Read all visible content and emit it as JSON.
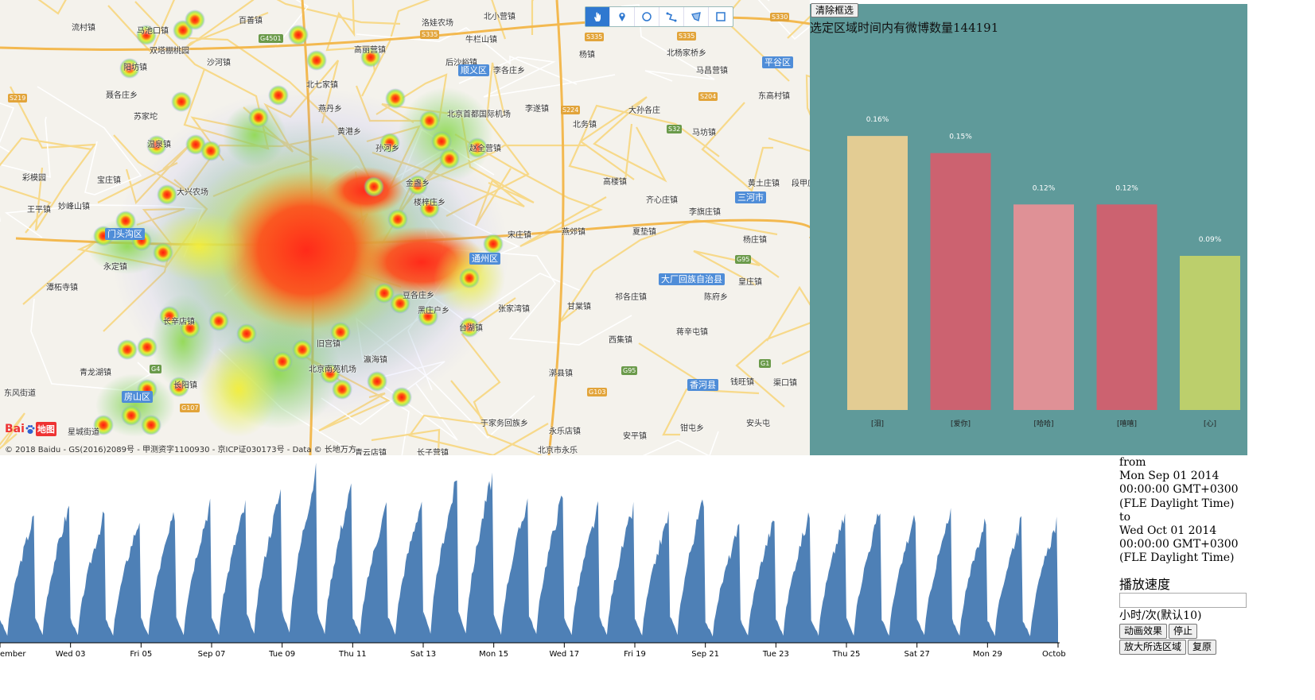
{
  "map": {
    "toolbar": [
      {
        "name": "hand-pan-icon",
        "active": true
      },
      {
        "name": "marker-icon",
        "active": false
      },
      {
        "name": "circle-draw-icon",
        "active": false
      },
      {
        "name": "polyline-draw-icon",
        "active": false
      },
      {
        "name": "polygon-draw-icon",
        "active": false
      },
      {
        "name": "rectangle-draw-icon",
        "active": false
      }
    ],
    "places": [
      [
        "流村镇",
        90,
        26
      ],
      [
        "马池口镇",
        172,
        30
      ],
      [
        "百善镇",
        300,
        17
      ],
      [
        "洛娃农场",
        530,
        20
      ],
      [
        "北小营镇",
        608,
        12
      ],
      [
        "双塔棚桃园",
        188,
        55
      ],
      [
        "沙河镇",
        260,
        70
      ],
      [
        "高丽营镇",
        445,
        54
      ],
      [
        "牛栏山镇",
        585,
        41
      ],
      [
        "杨镇",
        728,
        60
      ],
      [
        "北杨家桥乡",
        838,
        58
      ],
      [
        "阳坊镇",
        155,
        76
      ],
      [
        "马昌营镇",
        875,
        80
      ],
      [
        "东高村镇",
        953,
        112
      ],
      [
        "聂各庄乡",
        133,
        111
      ],
      [
        "北七家镇",
        385,
        98
      ],
      [
        "后沙峪镇",
        560,
        70
      ],
      [
        "李各庄乡",
        620,
        80
      ],
      [
        "大孙各庄",
        790,
        130
      ],
      [
        "苏家坨",
        168,
        138
      ],
      [
        "燕丹乡",
        400,
        128
      ],
      [
        "北京首都国际机场",
        562,
        135
      ],
      [
        "李遂镇",
        660,
        128
      ],
      [
        "北务镇",
        720,
        148
      ],
      [
        "温泉镇",
        185,
        173
      ],
      [
        "黄港乡",
        424,
        157
      ],
      [
        "孙河乡",
        472,
        178
      ],
      [
        "马坊镇",
        870,
        158
      ],
      [
        "赵全营镇",
        590,
        178
      ],
      [
        "彩模园",
        28,
        215
      ],
      [
        "宝庄镇",
        122,
        218
      ],
      [
        "高楼镇",
        758,
        220
      ],
      [
        "黄土庄镇",
        940,
        222
      ],
      [
        "段甲庄",
        995,
        222
      ],
      [
        "王平镇",
        34,
        255
      ],
      [
        "妙峰山镇",
        73,
        251
      ],
      [
        "大兴农场",
        222,
        233
      ],
      [
        "金盏乡",
        510,
        222
      ],
      [
        "楼梓庄乡",
        520,
        246
      ],
      [
        "齐心庄镇",
        812,
        243
      ],
      [
        "李旗庄镇",
        866,
        258
      ],
      [
        "宋庄镇",
        638,
        287
      ],
      [
        "燕郊镇",
        706,
        283
      ],
      [
        "夏垫镇",
        795,
        283
      ],
      [
        "杨庄镇",
        934,
        293
      ],
      [
        "永定镇",
        130,
        327
      ],
      [
        "潭柘寺镇",
        58,
        353
      ],
      [
        "豆各庄乡",
        506,
        363
      ],
      [
        "皇庄镇",
        928,
        346
      ],
      [
        "黑庄户乡",
        525,
        382
      ],
      [
        "张家湾镇",
        626,
        380
      ],
      [
        "甘棠镇",
        713,
        377
      ],
      [
        "祁各庄镇",
        773,
        365
      ],
      [
        "陈府乡",
        885,
        365
      ],
      [
        "长辛店镇",
        205,
        396
      ],
      [
        "台湖镇",
        577,
        404
      ],
      [
        "蒋辛屯镇",
        850,
        409
      ],
      [
        "旧宫镇",
        398,
        424
      ],
      [
        "西集镇",
        765,
        419
      ],
      [
        "长阳镇",
        218,
        476
      ],
      [
        "青龙湖镇",
        100,
        460
      ],
      [
        "北京南苑机场",
        388,
        456
      ],
      [
        "瀛海镇",
        457,
        444
      ],
      [
        "漷县镇",
        690,
        461
      ],
      [
        "钱旺镇",
        918,
        472
      ],
      [
        "渠口镇",
        972,
        473
      ],
      [
        "东风街道",
        5,
        486
      ],
      [
        "安头屯",
        938,
        524
      ],
      [
        "永乐店镇",
        690,
        534
      ],
      [
        "于家务回族乡",
        604,
        524
      ],
      [
        "钳屯乡",
        855,
        530
      ],
      [
        "安平镇",
        783,
        540
      ],
      [
        "星城街道",
        85,
        535
      ],
      [
        "青云店镇",
        446,
        561
      ],
      [
        "长子营镇",
        524,
        561
      ],
      [
        "北京市永乐",
        676,
        558
      ]
    ],
    "highways": [
      [
        "G4501",
        325,
        43,
        "g"
      ],
      [
        "S335",
        528,
        38,
        "y"
      ],
      [
        "S335",
        735,
        41,
        "y"
      ],
      [
        "S335",
        851,
        40,
        "y"
      ],
      [
        "S330",
        968,
        16,
        "y"
      ],
      [
        "S219",
        10,
        118,
        "y"
      ],
      [
        "S224",
        705,
        133,
        "y"
      ],
      [
        "S204",
        878,
        116,
        "y"
      ],
      [
        "S32",
        838,
        157,
        "g"
      ],
      [
        "G95",
        924,
        321,
        "g"
      ],
      [
        "G4",
        188,
        459,
        "g"
      ],
      [
        "G107",
        226,
        508,
        "y"
      ],
      [
        "G95",
        781,
        461,
        "g"
      ],
      [
        "G103",
        738,
        488,
        "y"
      ],
      [
        "G1",
        954,
        452,
        "g"
      ]
    ],
    "districts": [
      [
        "顺义区",
        576,
        81
      ],
      [
        "平谷区",
        958,
        71
      ],
      [
        "三河市",
        924,
        241
      ],
      [
        "大厂回族自治县",
        828,
        344
      ],
      [
        "香河县",
        864,
        477
      ],
      [
        "通州区",
        590,
        318
      ],
      [
        "房山区",
        153,
        492
      ],
      [
        "门头沟区",
        132,
        287
      ]
    ],
    "logo_text": "Bai",
    "logo_ditu": "地图",
    "copyright": "© 2018 Baidu - GS(2016)2089号 - 甲测资字1100930 - 京ICP证030173号 - Data © 长地万方"
  },
  "panel": {
    "clear_button": "清除框选",
    "selection_count": "选定区域时间内有微博数量144191"
  },
  "chart_data": [
    {
      "type": "bar",
      "categories": [
        "[泪]",
        "[爱你]",
        "[哈哈]",
        "[嘻嘻]",
        "[心]"
      ],
      "values": [
        0.16,
        0.15,
        0.12,
        0.12,
        0.09
      ],
      "value_labels": [
        "0.16%",
        "0.15%",
        "0.12%",
        "0.12%",
        "0.09%"
      ],
      "colors": [
        "#e3cc93",
        "#cc6270",
        "#df9196",
        "#cc6270",
        "#bccf6c"
      ],
      "ylim": [
        0,
        0.18
      ],
      "grid": false
    },
    {
      "type": "area",
      "x_ticks": [
        "ember",
        "Wed 03",
        "Fri 05",
        "Sep 07",
        "Tue 09",
        "Thu 11",
        "Sat 13",
        "Mon 15",
        "Wed 17",
        "Fri 19",
        "Sep 21",
        "Tue 23",
        "Thu 25",
        "Sat 27",
        "Mon 29",
        "October"
      ],
      "x_range": [
        "2014-09-01",
        "2014-10-01"
      ],
      "daily_peaks": [
        0.72,
        0.78,
        0.74,
        0.71,
        0.74,
        0.8,
        0.79,
        0.87,
        0.98,
        0.89,
        0.79,
        0.82,
        0.94,
        0.96,
        0.82,
        0.85,
        0.77,
        0.77,
        0.73,
        0.83,
        0.66,
        0.71,
        0.74,
        0.73,
        0.76,
        0.73,
        0.74,
        0.71,
        0.7,
        0.69
      ],
      "color": "#4e80b6",
      "grid": false
    }
  ],
  "controls": {
    "from_label": "from",
    "from_line1": "Mon Sep 01 2014",
    "from_line2": "00:00:00 GMT+0300",
    "from_line3": "(FLE Daylight Time)",
    "to_label": "to",
    "to_line1": "Wed Oct 01 2014",
    "to_line2": "00:00:00 GMT+0300",
    "to_line3": "(FLE Daylight Time)",
    "speed_title": "播放速度",
    "speed_value": "",
    "speed_unit": "小时/次(默认10)",
    "animate_button": "动画效果",
    "stop_button": "停止",
    "zoom_button": "放大所选区域",
    "reset_button": "复原"
  }
}
